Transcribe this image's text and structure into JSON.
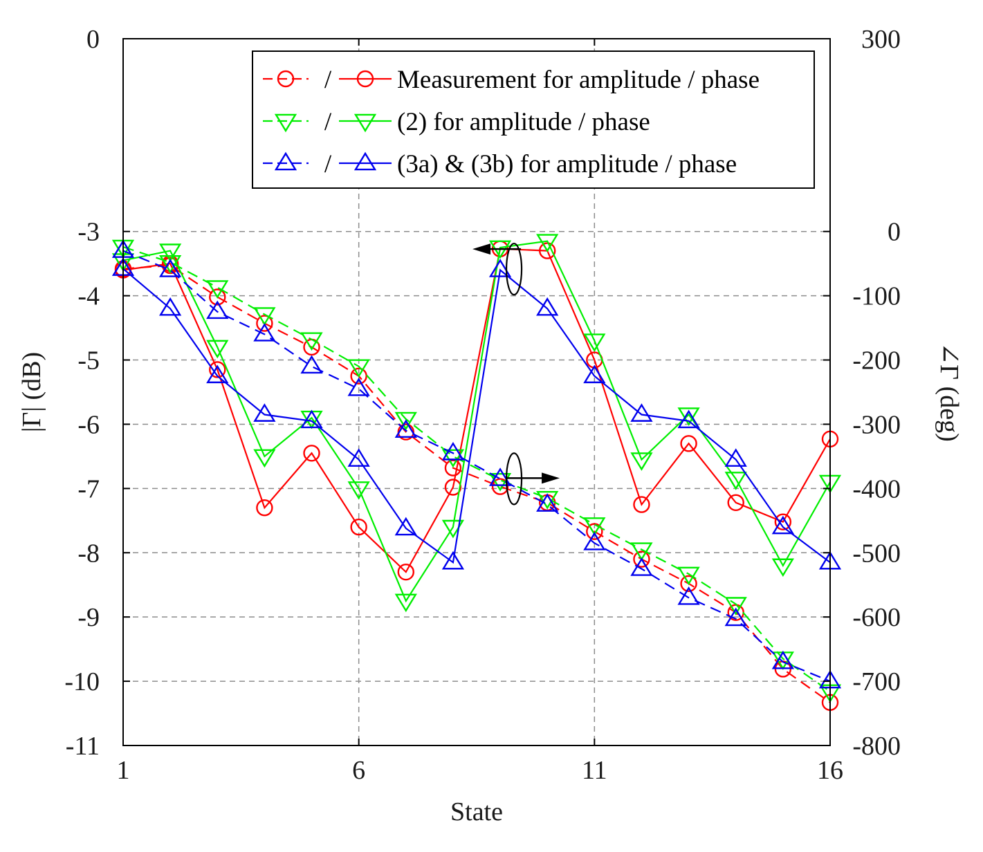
{
  "chart_data": {
    "type": "line",
    "xlabel": "State",
    "ylabel_left": "|Γ| (dB)",
    "ylabel_right": "∠Γ (deg)",
    "xlim": [
      1,
      16
    ],
    "xticks": [
      1,
      6,
      11,
      16
    ],
    "ylim_left": [
      -11,
      0
    ],
    "yticks_left": [
      0,
      -3,
      -4,
      -5,
      -6,
      -7,
      -8,
      -9,
      -10,
      -11
    ],
    "ylim_right": [
      -800,
      300
    ],
    "yticks_right": [
      300,
      0,
      -100,
      -200,
      -300,
      -400,
      -500,
      -600,
      -700,
      -800
    ],
    "grid": true,
    "legend_position": "top-right",
    "legend": [
      {
        "sep": "/",
        "label": "Measurement for amplitude / phase",
        "color": "#ff0000",
        "marker": "circle"
      },
      {
        "sep": "/",
        "label": "(2) for amplitude / phase",
        "color": "#00ee00",
        "marker": "triangle-down"
      },
      {
        "sep": "/",
        "label": "(3a) & (3b) for amplitude / phase",
        "color": "#0000ee",
        "marker": "triangle-up"
      }
    ],
    "x": [
      1,
      2,
      3,
      4,
      5,
      6,
      7,
      8,
      9,
      10,
      11,
      12,
      13,
      14,
      15,
      16
    ],
    "series": [
      {
        "name": "Measurement for amplitude",
        "axis": "left",
        "style": "solid",
        "marker": "circle",
        "color": "#ff0000",
        "values": [
          -3.6,
          -3.5,
          -5.15,
          -7.3,
          -6.45,
          -7.6,
          -8.3,
          -6.98,
          -3.27,
          -3.3,
          -5.0,
          -7.25,
          -6.3,
          -7.22,
          -7.52,
          -6.23
        ]
      },
      {
        "name": "Measurement for phase",
        "axis": "right",
        "style": "dashed",
        "marker": "circle",
        "color": "#ff0000",
        "values": [
          -58,
          -53,
          -102,
          -143,
          -180,
          -225,
          -312,
          -368,
          -397,
          -422,
          -467,
          -510,
          -548,
          -593,
          -681,
          -733
        ]
      },
      {
        "name": "(2) for amplitude",
        "axis": "left",
        "style": "solid",
        "marker": "triangle-down",
        "color": "#00ee00",
        "values": [
          -3.45,
          -3.3,
          -4.8,
          -6.5,
          -5.9,
          -7.0,
          -8.75,
          -7.6,
          -3.25,
          -3.15,
          -4.7,
          -6.55,
          -5.85,
          -6.85,
          -8.2,
          -6.9
        ]
      },
      {
        "name": "(2) for phase",
        "axis": "right",
        "style": "dashed",
        "marker": "triangle-down",
        "color": "#00ee00",
        "values": [
          -24,
          -48,
          -87,
          -129,
          -168,
          -210,
          -292,
          -350,
          -387,
          -415,
          -456,
          -495,
          -533,
          -580,
          -665,
          -716
        ]
      },
      {
        "name": "(3a) & (3b) for amplitude",
        "axis": "left",
        "style": "solid",
        "marker": "triangle-up",
        "color": "#0000ee",
        "values": [
          -3.58,
          -4.2,
          -5.25,
          -5.85,
          -5.95,
          -6.55,
          -7.62,
          -8.15,
          -3.6,
          -4.2,
          -5.25,
          -5.85,
          -5.95,
          -6.55,
          -7.6,
          -8.15
        ]
      },
      {
        "name": "(3a) & (3b) for phase",
        "axis": "right",
        "style": "dashed",
        "marker": "triangle-up",
        "color": "#0000ee",
        "values": [
          -30,
          -60,
          -125,
          -160,
          -210,
          -245,
          -310,
          -345,
          -385,
          -425,
          -485,
          -525,
          -570,
          -603,
          -670,
          -700
        ]
      }
    ],
    "annotations": [
      {
        "type": "axis-indicator",
        "target_axis": "left",
        "near_x": 9,
        "near_y_left": -3.5,
        "arrow": "left"
      },
      {
        "type": "axis-indicator",
        "target_axis": "right",
        "near_x": 9,
        "near_y_right": -400,
        "arrow": "right"
      }
    ]
  }
}
